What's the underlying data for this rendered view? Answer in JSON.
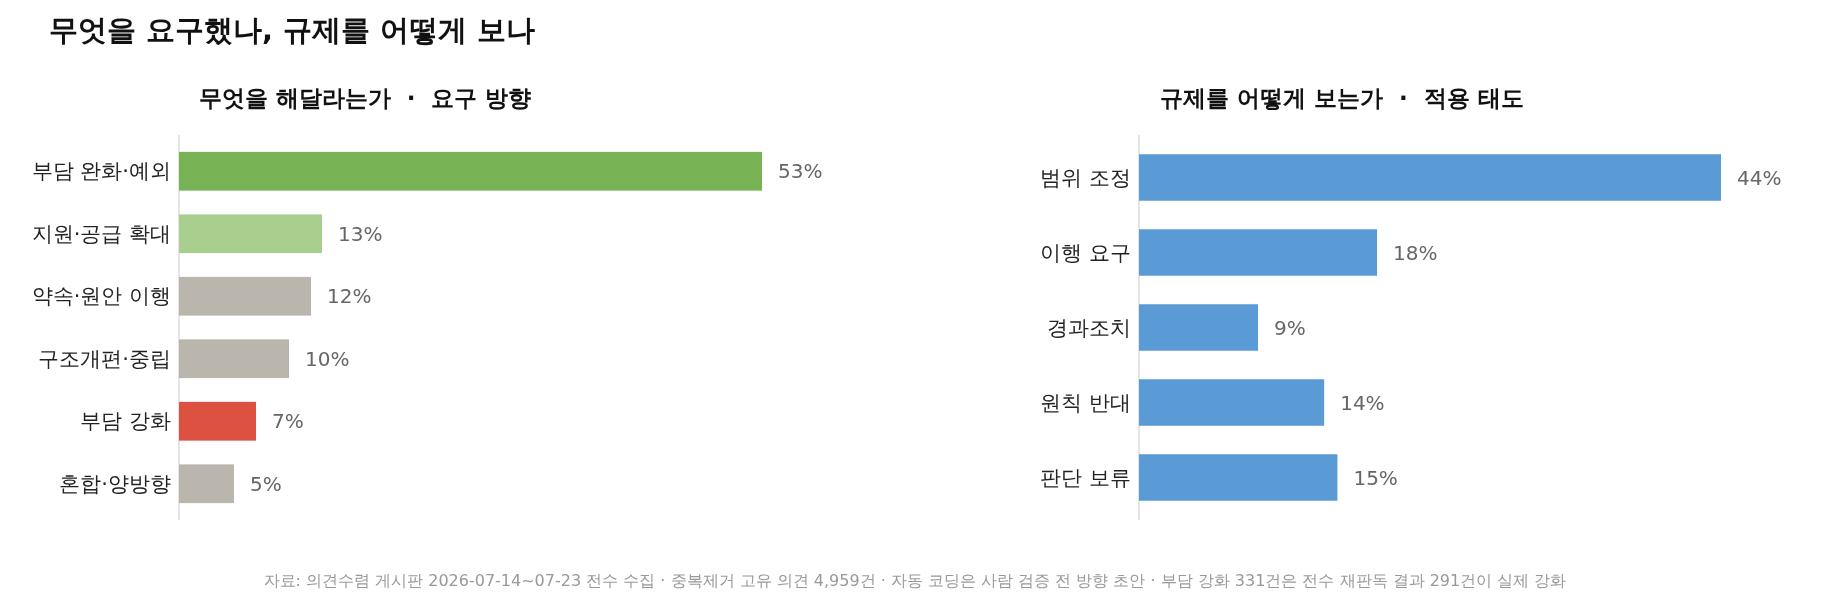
{
  "chart_data": [
    {
      "type": "bar",
      "orientation": "horizontal",
      "title": "무엇을 요구했나, 규제를 어떻게 보나",
      "subtitle": "무엇을 해달라는가  ·  요구 방향",
      "categories": [
        "부담 완화·예외",
        "지원·공급 확대",
        "약속·원안 이행",
        "구조개편·중립",
        "부담 강화",
        "혼합·양방향"
      ],
      "values": [
        53,
        13,
        12,
        10,
        7,
        5
      ],
      "colors": [
        "#77b255",
        "#a9cf8e",
        "#bab6ae",
        "#bab6ae",
        "#dc513f",
        "#bab6ae"
      ],
      "value_labels": [
        "53%",
        "13%",
        "12%",
        "10%",
        "7%",
        "5%"
      ],
      "annotations": [
        "자료: 의견수렴 게시판 2026-07-14~07-23 전수 수집 · 중복제거 고유 의견 4,959건 · 자동 코딩은 사람 검증 전 방향 초안 · 부담 강화 331건은 전수 재판독 결과 291건이 실제 강화"
      ]
    },
    {
      "type": "bar",
      "orientation": "horizontal",
      "subtitle": "규제를 어떻게 보는가  ·  적용 태도",
      "categories": [
        "범위 조정",
        "이행 요구",
        "경과조치",
        "원칙 반대",
        "판단 보류"
      ],
      "values": [
        44,
        18,
        9,
        14,
        15
      ],
      "colors": [
        "#5b9bd5",
        "#5b9bd5",
        "#5b9bd5",
        "#5b9bd5",
        "#5b9bd5"
      ],
      "value_labels": [
        "44%",
        "18%",
        "9%",
        "14%",
        "15%"
      ]
    }
  ]
}
